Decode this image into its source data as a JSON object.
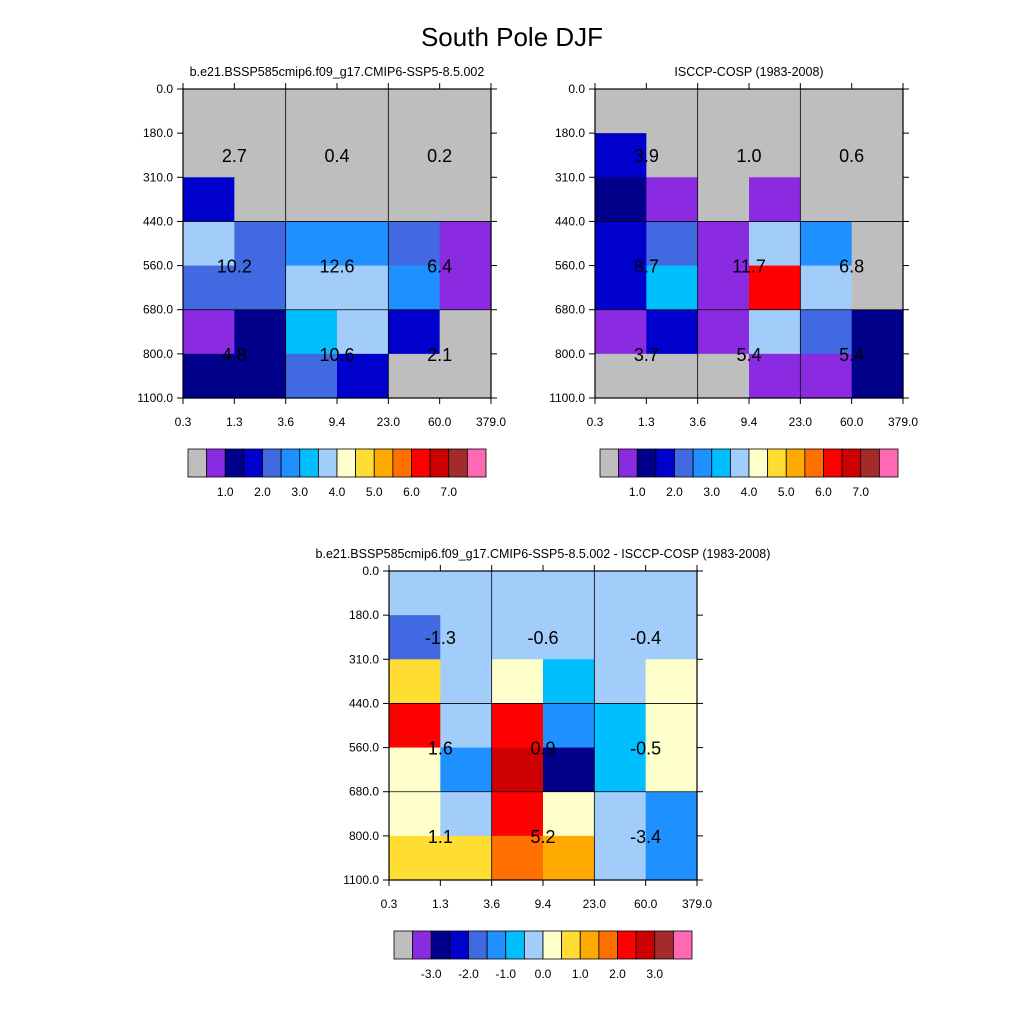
{
  "title": "South Pole DJF",
  "colors": {
    "missing": "#bebebe",
    "palette": [
      "#bebebe",
      "#8a2be2",
      "#00008b",
      "#0000cd",
      "#4169e1",
      "#1e90ff",
      "#00bfff",
      "#a2cdfa",
      "#ffffcc",
      "#ffdd33",
      "#ffaa00",
      "#ff7000",
      "#ff0000",
      "#cc0000",
      "#a52a2a",
      "#ff69b4"
    ]
  },
  "chart_data": [
    {
      "type": "heatmap",
      "title": "b.e21.BSSP585cmip6.f09_g17.CMIP6-SSP5-8.5.002",
      "x_tick_labels": [
        "0.3",
        "1.3",
        "3.6",
        "9.4",
        "23.0",
        "60.0",
        "379.0"
      ],
      "y_tick_labels": [
        "0.0",
        "180.0",
        "310.0",
        "440.0",
        "560.0",
        "680.0",
        "800.0",
        "1100.0"
      ],
      "cell_color_index": [
        [
          0,
          0,
          0,
          0,
          0,
          0
        ],
        [
          0,
          0,
          0,
          0,
          0,
          0
        ],
        [
          3,
          0,
          0,
          0,
          0,
          0
        ],
        [
          7,
          4,
          5,
          5,
          4,
          1
        ],
        [
          4,
          4,
          7,
          7,
          5,
          1
        ],
        [
          1,
          2,
          6,
          7,
          3,
          0
        ],
        [
          2,
          2,
          4,
          3,
          0,
          0
        ]
      ],
      "box_labels": [
        [
          "2.7",
          "0.4",
          "0.2"
        ],
        [
          "10.2",
          "12.6",
          "6.4"
        ],
        [
          "4.8",
          "10.6",
          "2.1"
        ]
      ],
      "colorbar": {
        "labels": [
          "1.0",
          "2.0",
          "3.0",
          "4.0",
          "5.0",
          "6.0",
          "7.0"
        ],
        "start_index": 2
      }
    },
    {
      "type": "heatmap",
      "title": "ISCCP-COSP (1983-2008)",
      "x_tick_labels": [
        "0.3",
        "1.3",
        "3.6",
        "9.4",
        "23.0",
        "60.0",
        "379.0"
      ],
      "y_tick_labels": [
        "0.0",
        "180.0",
        "310.0",
        "440.0",
        "560.0",
        "680.0",
        "800.0",
        "1100.0"
      ],
      "cell_color_index": [
        [
          0,
          0,
          0,
          0,
          0,
          0
        ],
        [
          3,
          0,
          0,
          0,
          0,
          0
        ],
        [
          2,
          1,
          0,
          1,
          0,
          0
        ],
        [
          3,
          4,
          1,
          7,
          5,
          0
        ],
        [
          3,
          6,
          1,
          12,
          7,
          0
        ],
        [
          1,
          3,
          1,
          7,
          4,
          2
        ],
        [
          0,
          0,
          0,
          1,
          1,
          2
        ]
      ],
      "box_labels": [
        [
          "3.9",
          "1.0",
          "0.6"
        ],
        [
          "8.7",
          "11.7",
          "6.8"
        ],
        [
          "3.7",
          "5.4",
          "5.4"
        ]
      ],
      "colorbar": {
        "labels": [
          "1.0",
          "2.0",
          "3.0",
          "4.0",
          "5.0",
          "6.0",
          "7.0"
        ],
        "start_index": 2
      }
    },
    {
      "type": "heatmap",
      "title": "b.e21.BSSP585cmip6.f09_g17.CMIP6-SSP5-8.5.002 - ISCCP-COSP (1983-2008)",
      "x_tick_labels": [
        "0.3",
        "1.3",
        "3.6",
        "9.4",
        "23.0",
        "60.0",
        "379.0"
      ],
      "y_tick_labels": [
        "0.0",
        "180.0",
        "310.0",
        "440.0",
        "560.0",
        "680.0",
        "800.0",
        "1100.0"
      ],
      "cell_color_index": [
        [
          7,
          7,
          7,
          7,
          7,
          7
        ],
        [
          4,
          7,
          7,
          7,
          7,
          7
        ],
        [
          9,
          7,
          8,
          6,
          7,
          8
        ],
        [
          12,
          7,
          12,
          5,
          6,
          8
        ],
        [
          8,
          5,
          13,
          2,
          6,
          8
        ],
        [
          8,
          7,
          12,
          8,
          7,
          5
        ],
        [
          9,
          9,
          11,
          10,
          7,
          5
        ]
      ],
      "box_labels": [
        [
          "-1.3",
          "-0.6",
          "-0.4"
        ],
        [
          "1.6",
          "0.9",
          "-0.5"
        ],
        [
          "1.1",
          "5.2",
          "-3.4"
        ]
      ],
      "colorbar": {
        "labels": [
          "-3.0",
          "-2.0",
          "-1.0",
          "0.0",
          "1.0",
          "2.0",
          "3.0"
        ],
        "start_index": 2
      }
    }
  ]
}
